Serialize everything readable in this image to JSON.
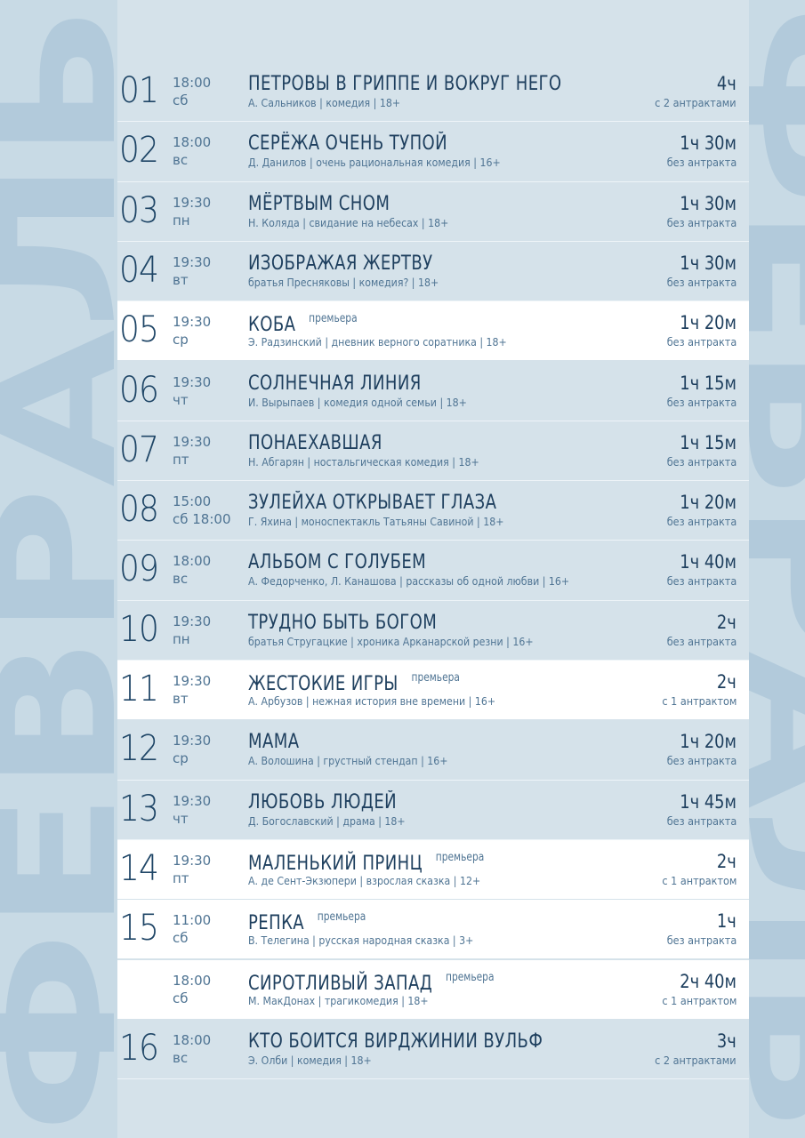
{
  "month": "ФЕВРАЛЬ",
  "premiere_label": "премьера",
  "rows": [
    {
      "day": "01",
      "time": "18:00",
      "weekday": "сб",
      "title": "ПЕТРОВЫ В ГРИППЕ И ВОКРУГ НЕГО",
      "subtitle": "А. Сальников | комедия  | 18+",
      "duration": "4ч",
      "intermission": "с 2 антрактами"
    },
    {
      "day": "02",
      "time": "18:00",
      "weekday": "вс",
      "title": "СЕРЁЖА ОЧЕНЬ ТУПОЙ",
      "subtitle": "Д. Данилов | очень рациональная комедия | 16+",
      "duration": "1ч 30м",
      "intermission": "без антракта"
    },
    {
      "day": "03",
      "time": "19:30",
      "weekday": "пн",
      "title": "МЁРТВЫМ СНОМ",
      "subtitle": "Н. Коляда | свидание на небесах | 18+",
      "duration": "1ч 30м",
      "intermission": "без антракта"
    },
    {
      "day": "04",
      "time": "19:30",
      "weekday": "вт",
      "title": "ИЗОБРАЖАЯ ЖЕРТВУ",
      "subtitle": "братья Пресняковы | комедия? | 18+",
      "duration": "1ч 30м",
      "intermission": "без антракта"
    },
    {
      "day": "05",
      "time": "19:30",
      "weekday": "ср",
      "title": "КОБА",
      "premiere": true,
      "subtitle": "Э. Радзинский | дневник верного соратника | 18+",
      "duration": "1ч 20м",
      "intermission": "без антракта"
    },
    {
      "day": "06",
      "time": "19:30",
      "weekday": "чт",
      "title": "СОЛНЕЧНАЯ ЛИНИЯ",
      "subtitle": "И. Вырыпаев | комедия одной семьи | 18+",
      "duration": "1ч 15м",
      "intermission": "без антракта"
    },
    {
      "day": "07",
      "time": "19:30",
      "weekday": "пт",
      "title": "ПОНАЕХАВШАЯ",
      "subtitle": "Н. Абгарян | ностальгическая комедия | 18+",
      "duration": "1ч 15м",
      "intermission": "без антракта"
    },
    {
      "day": "08",
      "time": "15:00",
      "weekday": "сб 18:00",
      "title": "ЗУЛЕЙХА ОТКРЫВАЕТ ГЛАЗА",
      "subtitle": "Г. Яхина | моноспектакль Татьяны Савиной | 18+",
      "duration": "1ч 20м",
      "intermission": "без антракта"
    },
    {
      "day": "09",
      "time": "18:00",
      "weekday": "вс",
      "title": "АЛЬБОМ С ГОЛУБЕМ",
      "subtitle": "А. Федорченко, Л. Канашова | рассказы об одной любви | 16+",
      "duration": "1ч 40м",
      "intermission": "без антракта"
    },
    {
      "day": "10",
      "time": "19:30",
      "weekday": "пн",
      "title": "ТРУДНО БЫТЬ БОГОМ",
      "subtitle": "братья Стругацкие | хроника Арканарской резни | 16+",
      "duration": "2ч",
      "intermission": "без антракта"
    },
    {
      "day": "11",
      "time": "19:30",
      "weekday": "вт",
      "title": "ЖЕСТОКИЕ ИГРЫ",
      "premiere": true,
      "subtitle": "А. Арбузов | нежная история вне времени | 16+",
      "duration": "2ч",
      "intermission": "с 1 антрактом"
    },
    {
      "day": "12",
      "time": "19:30",
      "weekday": "ср",
      "title": "МАМА",
      "subtitle": "А. Волошина | грустный стендап | 16+",
      "duration": "1ч 20м",
      "intermission": "без антракта"
    },
    {
      "day": "13",
      "time": "19:30",
      "weekday": "чт",
      "title": "ЛЮБОВЬ ЛЮДЕЙ",
      "subtitle": "Д. Богославский | драма | 18+",
      "duration": "1ч 45м",
      "intermission": "без антракта"
    },
    {
      "day": "14",
      "time": "19:30",
      "weekday": "пт",
      "title": "МАЛЕНЬКИЙ ПРИНЦ",
      "premiere": true,
      "subtitle": "А. де Сент-Экзюпери | взрослая сказка | 12+",
      "duration": "2ч",
      "intermission": "с 1 антрактом"
    },
    {
      "day": "15",
      "time": "11:00",
      "weekday": "сб",
      "title": "РЕПКА",
      "premiere": true,
      "subtitle": "В. Телегина | русская народная сказка | 3+",
      "duration": "1ч",
      "intermission": "без антракта"
    },
    {
      "time": "18:00",
      "weekday": "сб",
      "title": "СИРОТЛИВЫЙ ЗАПАД",
      "premiere": true,
      "subtitle": "М. МакДонах | трагикомедия | 18+",
      "duration": "2ч 40м",
      "intermission": "с 1 антрактом"
    },
    {
      "day": "16",
      "time": "18:00",
      "weekday": "вс",
      "title": "КТО БОИТСЯ ВИРДЖИНИИ ВУЛЬФ",
      "subtitle": "Э. Олби | комедия | 18+",
      "duration": "3ч",
      "intermission": "с 2 антрактами"
    }
  ]
}
